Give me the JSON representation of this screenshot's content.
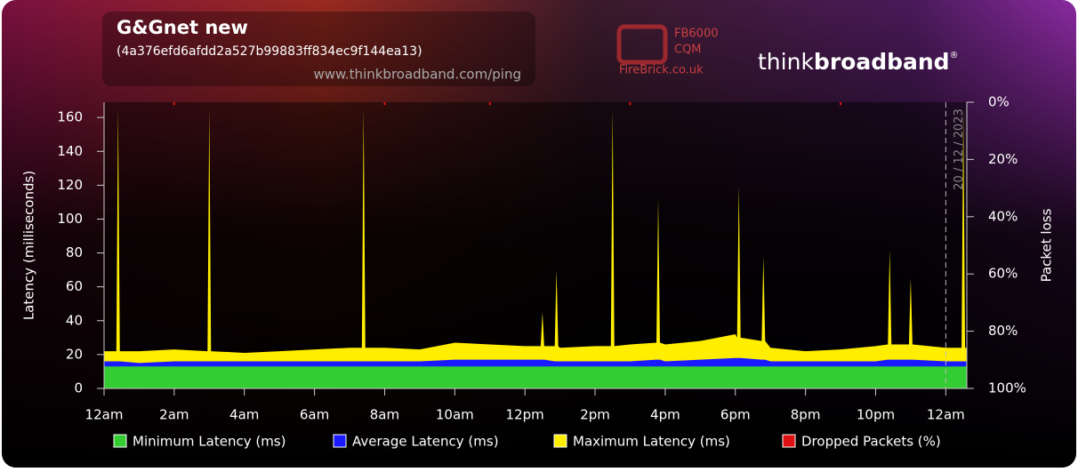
{
  "header": {
    "title": "G&Gnet new",
    "subtitle": "(4a376efd6afdd2a527b99883ff834ec9f144ea13)",
    "url": "www.thinkbroadband.com/ping"
  },
  "logos": {
    "firebrick_model": "FB6000",
    "firebrick_product": "CQM",
    "firebrick_site": "FireBrick.co.uk",
    "brand_think": "think",
    "brand_broadband": "broadband",
    "brand_mark": "®"
  },
  "chart_data": {
    "type": "area",
    "ylabel": "Latency (milliseconds)",
    "y2label": "Packet loss",
    "xlim": [
      0,
      24.6
    ],
    "ylim": [
      0,
      169
    ],
    "y2lim": [
      100,
      0
    ],
    "xticks": [
      {
        "value": 0,
        "label": "12am"
      },
      {
        "value": 2,
        "label": "2am"
      },
      {
        "value": 4,
        "label": "4am"
      },
      {
        "value": 6,
        "label": "6am"
      },
      {
        "value": 8,
        "label": "8am"
      },
      {
        "value": 10,
        "label": "10am"
      },
      {
        "value": 12,
        "label": "12pm"
      },
      {
        "value": 14,
        "label": "2pm"
      },
      {
        "value": 16,
        "label": "4pm"
      },
      {
        "value": 18,
        "label": "6pm"
      },
      {
        "value": 20,
        "label": "8pm"
      },
      {
        "value": 22,
        "label": "10pm"
      },
      {
        "value": 24,
        "label": "12am"
      }
    ],
    "yticks": [
      0,
      20,
      40,
      60,
      80,
      100,
      120,
      140,
      160
    ],
    "y2ticks": [
      {
        "value": 0,
        "label": "0%"
      },
      {
        "value": 20,
        "label": "20%"
      },
      {
        "value": 40,
        "label": "40%"
      },
      {
        "value": 60,
        "label": "60%"
      },
      {
        "value": 80,
        "label": "80%"
      },
      {
        "value": 100,
        "label": "100%"
      }
    ],
    "date_marker": {
      "x": 24,
      "label": "20 / 12 / 2023"
    },
    "x": [
      0,
      0.35,
      0.4,
      0.45,
      1,
      2,
      2.95,
      3.0,
      3.05,
      4,
      5,
      6,
      7,
      7.35,
      7.4,
      7.45,
      8,
      9,
      10,
      11,
      12,
      12.45,
      12.5,
      12.55,
      12.85,
      12.9,
      12.95,
      13,
      14,
      14.45,
      14.5,
      14.55,
      15,
      15.75,
      15.8,
      15.85,
      16,
      17,
      18,
      18.05,
      18.1,
      18.15,
      18.75,
      18.8,
      18.85,
      19,
      20,
      21,
      22,
      22.35,
      22.4,
      22.45,
      22.95,
      23.0,
      23.05,
      24,
      24.45,
      24.5,
      24.55,
      24.6
    ],
    "series": [
      {
        "name": "Minimum Latency (ms)",
        "color": "#33cc33",
        "values": [
          13,
          13,
          13,
          13,
          13,
          13,
          13,
          13,
          13,
          13,
          13,
          13,
          13,
          13,
          13,
          13,
          13,
          13,
          13,
          13,
          13,
          13,
          13,
          13,
          13,
          13,
          13,
          13,
          13,
          13,
          13,
          13,
          13,
          13,
          13,
          13,
          13,
          13,
          13,
          13,
          13,
          13,
          13,
          13,
          13,
          13,
          13,
          13,
          13,
          13,
          13,
          13,
          13,
          13,
          13,
          13,
          13,
          13,
          13,
          13
        ]
      },
      {
        "name": "Average Latency (ms)",
        "color": "#1a1aff",
        "values": [
          16,
          16,
          16,
          16,
          15,
          16,
          16,
          16,
          16,
          16,
          16,
          16,
          16,
          16,
          16,
          16,
          16,
          16,
          17,
          17,
          17,
          17,
          17,
          17,
          16,
          16,
          16,
          16,
          16,
          16,
          16,
          16,
          16,
          17,
          17,
          17,
          16,
          17,
          18,
          18,
          18,
          18,
          17,
          17,
          17,
          16,
          16,
          16,
          16,
          17,
          17,
          17,
          17,
          17,
          17,
          16,
          16,
          16,
          16,
          16
        ]
      },
      {
        "name": "Maximum Latency (ms)",
        "color": "#ffee00",
        "values": [
          22,
          22,
          165,
          22,
          22,
          23,
          22,
          165,
          22,
          21,
          22,
          23,
          24,
          24,
          165,
          24,
          24,
          23,
          27,
          26,
          25,
          25,
          45,
          25,
          25,
          70,
          25,
          24,
          25,
          25,
          165,
          25,
          26,
          27,
          112,
          27,
          26,
          28,
          32,
          30,
          120,
          30,
          28,
          78,
          28,
          24,
          22,
          23,
          25,
          26,
          82,
          26,
          26,
          65,
          26,
          24,
          24,
          165,
          24,
          24
        ]
      },
      {
        "name": "Dropped Packets (%)",
        "color": "#dd1111",
        "axis": "y2",
        "values": [
          0,
          0,
          0,
          0,
          0,
          1,
          0,
          0,
          0,
          0,
          0,
          0,
          0,
          0,
          0,
          0,
          1,
          0,
          0,
          1,
          0,
          0,
          0,
          0,
          0,
          0,
          0,
          0,
          0,
          0,
          0,
          0,
          1,
          0,
          0,
          0,
          0,
          0,
          0,
          0,
          0,
          0,
          0,
          0,
          0,
          0,
          0,
          1,
          0,
          0,
          0,
          0,
          0,
          0,
          0,
          0,
          0,
          0,
          0,
          0
        ]
      }
    ]
  }
}
